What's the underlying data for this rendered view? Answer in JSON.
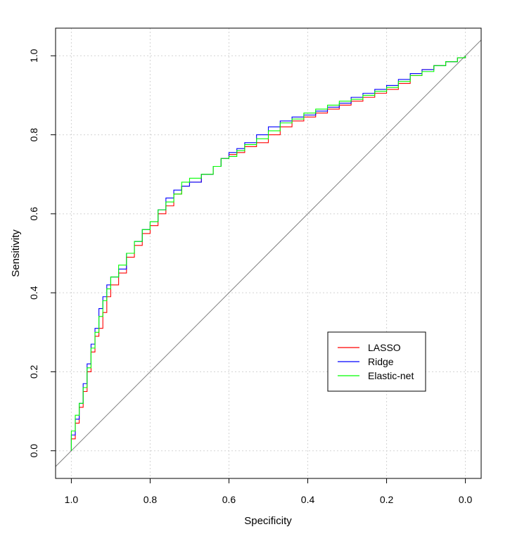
{
  "chart_data": {
    "type": "line",
    "title": "",
    "xlabel": "Specificity",
    "ylabel": "Sensitivity",
    "xlim": [
      1.04,
      -0.04
    ],
    "ylim": [
      -0.07,
      1.07
    ],
    "x_reversed": true,
    "grid": true,
    "x_ticks": [
      1.0,
      0.8,
      0.6,
      0.4,
      0.2,
      0.0
    ],
    "x_tick_labels": [
      "1.0",
      "0.8",
      "0.6",
      "0.4",
      "0.2",
      "0.0"
    ],
    "y_ticks": [
      0.0,
      0.2,
      0.4,
      0.6,
      0.8,
      1.0
    ],
    "y_tick_labels": [
      "0.0",
      "0.2",
      "0.4",
      "0.6",
      "0.8",
      "1.0"
    ],
    "legend_position": "bottom-right",
    "reference_line": {
      "from": [
        1.0,
        0.0
      ],
      "to": [
        0.0,
        1.0
      ],
      "color": "#808080"
    },
    "series": [
      {
        "name": "LASSO",
        "color": "#ff0000",
        "specificity": [
          1.0,
          1.0,
          0.99,
          0.98,
          0.97,
          0.96,
          0.95,
          0.94,
          0.93,
          0.92,
          0.91,
          0.9,
          0.88,
          0.86,
          0.84,
          0.82,
          0.8,
          0.78,
          0.76,
          0.74,
          0.72,
          0.7,
          0.67,
          0.64,
          0.62,
          0.6,
          0.58,
          0.56,
          0.53,
          0.5,
          0.47,
          0.44,
          0.41,
          0.38,
          0.35,
          0.32,
          0.29,
          0.26,
          0.23,
          0.2,
          0.17,
          0.14,
          0.11,
          0.08,
          0.05,
          0.02,
          0.0
        ],
        "sensitivity": [
          0.0,
          0.03,
          0.07,
          0.11,
          0.15,
          0.2,
          0.25,
          0.29,
          0.31,
          0.35,
          0.39,
          0.42,
          0.45,
          0.49,
          0.52,
          0.55,
          0.57,
          0.6,
          0.62,
          0.65,
          0.67,
          0.68,
          0.7,
          0.72,
          0.74,
          0.75,
          0.755,
          0.77,
          0.78,
          0.8,
          0.82,
          0.835,
          0.845,
          0.855,
          0.865,
          0.875,
          0.885,
          0.895,
          0.905,
          0.915,
          0.93,
          0.95,
          0.965,
          0.975,
          0.985,
          0.995,
          1.0
        ]
      },
      {
        "name": "Ridge",
        "color": "#0000ff",
        "specificity": [
          1.0,
          1.0,
          0.99,
          0.98,
          0.97,
          0.96,
          0.95,
          0.94,
          0.93,
          0.92,
          0.91,
          0.9,
          0.88,
          0.86,
          0.84,
          0.82,
          0.8,
          0.78,
          0.76,
          0.74,
          0.72,
          0.7,
          0.67,
          0.64,
          0.62,
          0.6,
          0.58,
          0.56,
          0.53,
          0.5,
          0.47,
          0.44,
          0.41,
          0.38,
          0.35,
          0.32,
          0.29,
          0.26,
          0.23,
          0.2,
          0.17,
          0.14,
          0.11,
          0.08,
          0.05,
          0.02,
          0.0
        ],
        "sensitivity": [
          0.0,
          0.04,
          0.08,
          0.12,
          0.17,
          0.22,
          0.27,
          0.31,
          0.36,
          0.39,
          0.42,
          0.44,
          0.46,
          0.5,
          0.53,
          0.56,
          0.58,
          0.61,
          0.64,
          0.66,
          0.67,
          0.68,
          0.7,
          0.72,
          0.74,
          0.755,
          0.765,
          0.78,
          0.8,
          0.82,
          0.835,
          0.845,
          0.85,
          0.86,
          0.87,
          0.88,
          0.895,
          0.905,
          0.915,
          0.925,
          0.94,
          0.955,
          0.965,
          0.975,
          0.985,
          0.995,
          1.0
        ]
      },
      {
        "name": "Elastic-net",
        "color": "#00ff00",
        "specificity": [
          1.0,
          1.0,
          0.99,
          0.98,
          0.97,
          0.96,
          0.95,
          0.94,
          0.93,
          0.92,
          0.91,
          0.9,
          0.88,
          0.86,
          0.84,
          0.82,
          0.8,
          0.78,
          0.76,
          0.74,
          0.72,
          0.7,
          0.67,
          0.64,
          0.62,
          0.6,
          0.58,
          0.56,
          0.53,
          0.5,
          0.47,
          0.44,
          0.41,
          0.38,
          0.35,
          0.32,
          0.29,
          0.26,
          0.23,
          0.2,
          0.17,
          0.14,
          0.11,
          0.08,
          0.05,
          0.02,
          0.0
        ],
        "sensitivity": [
          0.0,
          0.05,
          0.09,
          0.12,
          0.16,
          0.21,
          0.26,
          0.3,
          0.34,
          0.38,
          0.41,
          0.44,
          0.47,
          0.5,
          0.53,
          0.56,
          0.58,
          0.61,
          0.63,
          0.65,
          0.68,
          0.69,
          0.7,
          0.72,
          0.74,
          0.745,
          0.76,
          0.775,
          0.79,
          0.81,
          0.83,
          0.84,
          0.855,
          0.865,
          0.875,
          0.885,
          0.89,
          0.9,
          0.91,
          0.92,
          0.935,
          0.95,
          0.96,
          0.975,
          0.985,
          0.995,
          1.0
        ]
      }
    ]
  }
}
